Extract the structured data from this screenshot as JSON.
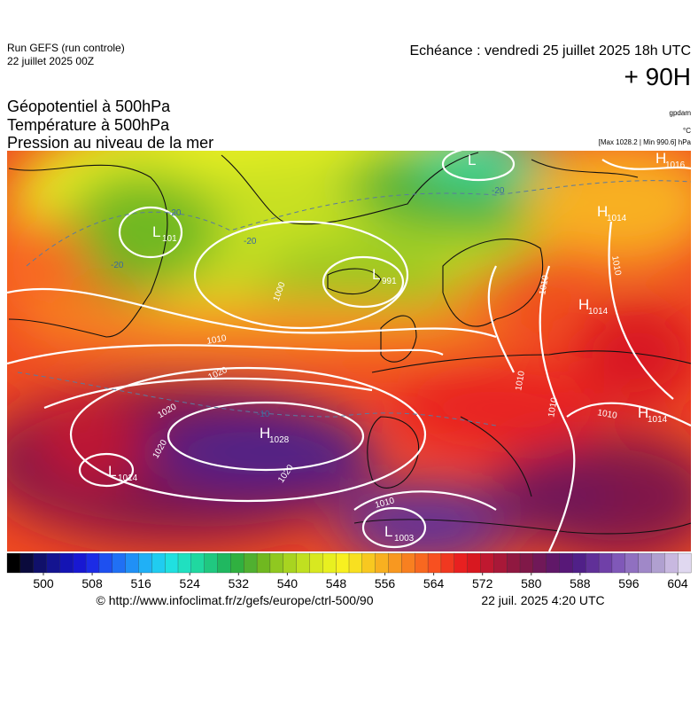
{
  "header": {
    "run": "Run GEFS (run controle)",
    "run_date": "22 juillet 2025 00Z",
    "valid": "Echéance : vendredi 25 juillet 2025 18h UTC",
    "lead": "+ 90H",
    "fields": [
      "Géopotentiel à 500hPa",
      "Température à 500hPa",
      "Pression au niveau de la mer"
    ],
    "units": [
      "gpdam",
      "°C"
    ],
    "range": "[Max 1028.2 | Min 990.6] hPa"
  },
  "map": {
    "centers": [
      {
        "letter": "L"
      },
      {
        "letter": "H",
        "value": "1016"
      },
      {
        "letter": "H",
        "value": "1014"
      },
      {
        "letter": "L",
        "value": "101"
      },
      {
        "letter": "L",
        "value": "991"
      },
      {
        "letter": "H",
        "value": "1014"
      },
      {
        "letter": "H",
        "value": "1028"
      },
      {
        "letter": "L",
        "value": "1014"
      },
      {
        "letter": "L",
        "value": "1003"
      },
      {
        "letter": "H",
        "value": "1014"
      }
    ],
    "isobar_labels": [
      "1000",
      "1010",
      "1020",
      "1020",
      "1020",
      "1020",
      "1010",
      "1010",
      "1010",
      "1010",
      "1010",
      "1010"
    ],
    "temperature_labels": [
      "-20",
      "-20",
      "-20",
      "-20",
      "-10"
    ]
  },
  "colorbar": {
    "colors": [
      "#000000",
      "#0a0a3c",
      "#10106a",
      "#141490",
      "#1414b4",
      "#1818d2",
      "#1c2ce6",
      "#1e50f0",
      "#2070f4",
      "#2090f6",
      "#20b0f6",
      "#20ccf0",
      "#20e0e0",
      "#20e0c0",
      "#20d8a0",
      "#20c880",
      "#20b860",
      "#30b040",
      "#50b030",
      "#70b820",
      "#90c820",
      "#a8d420",
      "#c0e020",
      "#d8e820",
      "#e8f020",
      "#f8f020",
      "#f8e020",
      "#f8c820",
      "#f8b020",
      "#f89820",
      "#f88020",
      "#f86820",
      "#f85020",
      "#f03820",
      "#e82020",
      "#d81820",
      "#c01830",
      "#a81838",
      "#901840",
      "#801848",
      "#701858",
      "#601868",
      "#581878",
      "#502088",
      "#603098",
      "#7040a8",
      "#8058b8",
      "#9070c0",
      "#a088c8",
      "#b0a0d0",
      "#c8b8e0",
      "#e0d8f0"
    ],
    "ticks": [
      500,
      508,
      516,
      524,
      532,
      540,
      548,
      556,
      564,
      572,
      580,
      588,
      596,
      604
    ]
  },
  "footer": {
    "source": "© http://www.infoclimat.fr/z/gefs/europe/ctrl-500/90",
    "generated": "22 juil. 2025  4:20 UTC"
  }
}
